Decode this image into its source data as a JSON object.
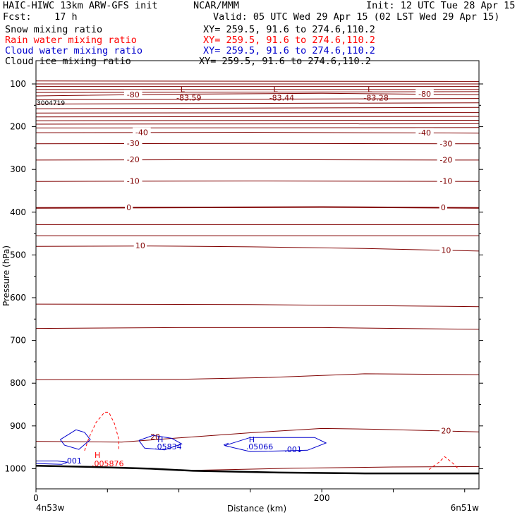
{
  "header": {
    "model": "HAIC-HIWC 13km ARW-GFS init",
    "agency": "NCAR/MMM",
    "init": "Init: 12 UTC Tue 28 Apr 15",
    "fcst": "Fcst:    17 h",
    "valid": "Valid: 05 UTC Wed 29 Apr 15 (02 LST Wed 29 Apr 15)"
  },
  "fields": [
    {
      "name": "Snow mixing ratio",
      "xy": "XY= 259.5, 91.6 to 274.6,110.2",
      "color": "#000000"
    },
    {
      "name": "Rain water mixing ratio",
      "xy": "XY= 259.5, 91.6 to 274.6,110.2",
      "color": "#ff0000"
    },
    {
      "name": "Cloud water mixing ratio",
      "xy": "XY= 259.5, 91.6 to 274.6,110.2",
      "color": "#0000cc"
    },
    {
      "name": "Cloud ice mixing ratio",
      "xy": "XY= 259.5, 91.6 to 274.6,110.2",
      "color": "#000000"
    }
  ],
  "colors": {
    "temperature": "#800000",
    "rain": "#ff0000",
    "cloud_water": "#0000cc",
    "terrain": "#000000"
  },
  "chart_data": {
    "type": "line",
    "ylabel": "Pressure (hPa)",
    "xlabel": "Distance (km)",
    "x_range": [
      0,
      310
    ],
    "y_range": [
      50,
      1050
    ],
    "y_ticks": [
      100,
      200,
      300,
      400,
      500,
      600,
      700,
      800,
      900,
      1000
    ],
    "x_ticks": [
      0,
      200
    ],
    "left_endpoint": "4n53w",
    "right_endpoint": "6n51w",
    "stamp": "3004719",
    "temperature_isotherms": [
      {
        "label": "-80",
        "labels_at": [
          68,
          272
        ],
        "points": [
          [
            0,
            128
          ],
          [
            100,
            124
          ],
          [
            200,
            122
          ],
          [
            310,
            125
          ]
        ]
      },
      {
        "label": "-40",
        "labels_at": [
          74,
          272
        ],
        "points": [
          [
            0,
            214
          ],
          [
            150,
            213
          ],
          [
            310,
            215
          ]
        ]
      },
      {
        "label": "-30",
        "labels_at": [
          68,
          287
        ],
        "points": [
          [
            0,
            240
          ],
          [
            150,
            239
          ],
          [
            310,
            240
          ]
        ]
      },
      {
        "label": "-20",
        "labels_at": [
          68,
          287
        ],
        "points": [
          [
            0,
            278
          ],
          [
            150,
            277
          ],
          [
            310,
            278
          ]
        ]
      },
      {
        "label": "-10",
        "labels_at": [
          68,
          287
        ],
        "points": [
          [
            0,
            328
          ],
          [
            150,
            327
          ],
          [
            310,
            328
          ]
        ]
      },
      {
        "label": "0",
        "labels_at": [
          65,
          285
        ],
        "points": [
          [
            0,
            390
          ],
          [
            200,
            388
          ],
          [
            310,
            390
          ]
        ]
      },
      {
        "label": "10",
        "labels_at": [
          73,
          287
        ],
        "points": [
          [
            0,
            480
          ],
          [
            80,
            479
          ],
          [
            150,
            481
          ],
          [
            230,
            485
          ],
          [
            310,
            491
          ]
        ]
      },
      {
        "label": "20",
        "labels_at": [
          287
        ],
        "points": [
          [
            0,
            936
          ],
          [
            60,
            938
          ],
          [
            100,
            928
          ],
          [
            150,
            916
          ],
          [
            200,
            906
          ],
          [
            240,
            908
          ],
          [
            310,
            914
          ]
        ]
      }
    ],
    "unlabeled_isotherms": [
      [
        [
          0,
          93
        ],
        [
          310,
          94
        ]
      ],
      [
        [
          0,
          100
        ],
        [
          310,
          100
        ]
      ],
      [
        [
          0,
          106
        ],
        [
          310,
          106
        ]
      ],
      [
        [
          0,
          113
        ],
        [
          310,
          113
        ]
      ],
      [
        [
          0,
          120
        ],
        [
          310,
          118
        ]
      ],
      [
        [
          0,
          137
        ],
        [
          310,
          134
        ]
      ],
      [
        [
          0,
          147
        ],
        [
          310,
          144
        ]
      ],
      [
        [
          0,
          158
        ],
        [
          310,
          155
        ]
      ],
      [
        [
          0,
          168
        ],
        [
          310,
          167
        ]
      ],
      [
        [
          0,
          177
        ],
        [
          310,
          176
        ]
      ],
      [
        [
          0,
          186
        ],
        [
          310,
          185
        ]
      ],
      [
        [
          0,
          194
        ],
        [
          310,
          193
        ]
      ],
      [
        [
          0,
          203
        ],
        [
          310,
          202
        ]
      ],
      [
        [
          0,
          429
        ],
        [
          310,
          429
        ]
      ],
      [
        [
          0,
          455
        ],
        [
          310,
          455
        ]
      ],
      [
        [
          0,
          615
        ],
        [
          150,
          616
        ],
        [
          310,
          621
        ]
      ],
      [
        [
          0,
          672
        ],
        [
          100,
          670
        ],
        [
          200,
          670
        ],
        [
          310,
          674
        ]
      ],
      [
        [
          0,
          792
        ],
        [
          100,
          791
        ],
        [
          160,
          787
        ],
        [
          230,
          778
        ],
        [
          310,
          780
        ]
      ],
      [
        [
          110,
          1004
        ],
        [
          180,
          999
        ],
        [
          250,
          996
        ],
        [
          310,
          995
        ]
      ]
    ],
    "temperature_minima": [
      {
        "label": "L",
        "value": "-83.59",
        "x": 107
      },
      {
        "label": "L",
        "value": "-83.44",
        "x": 172
      },
      {
        "label": "L",
        "value": "-83.28",
        "x": 238
      }
    ],
    "rain_contours": [
      [
        [
          34,
          958
        ],
        [
          37,
          928
        ],
        [
          42,
          892
        ],
        [
          48,
          868
        ],
        [
          51,
          868
        ],
        [
          55,
          895
        ],
        [
          58,
          932
        ],
        [
          58,
          958
        ]
      ],
      [
        [
          275,
          1002
        ],
        [
          282,
          985
        ],
        [
          286,
          972
        ],
        [
          292,
          988
        ],
        [
          296,
          1002
        ]
      ]
    ],
    "rain_max": {
      "label": "H",
      "value": ".005876",
      "x": 41
    },
    "cloud_water_contours": [
      [
        [
          17,
          932
        ],
        [
          28,
          909
        ],
        [
          34,
          915
        ],
        [
          38,
          932
        ],
        [
          30,
          955
        ],
        [
          20,
          945
        ],
        [
          17,
          932
        ]
      ],
      [
        [
          72,
          934
        ],
        [
          82,
          922
        ],
        [
          95,
          929
        ],
        [
          102,
          942
        ],
        [
          90,
          956
        ],
        [
          76,
          952
        ],
        [
          72,
          934
        ]
      ],
      [
        [
          132,
          946
        ],
        [
          150,
          927
        ],
        [
          195,
          927
        ],
        [
          203,
          940
        ],
        [
          190,
          957
        ],
        [
          150,
          960
        ],
        [
          132,
          946
        ]
      ]
    ],
    "cloud_water_labels": [
      {
        "label": ".001",
        "x": 26
      },
      {
        "label": ".001",
        "x": 180
      },
      {
        "label": "<",
        "x": 133
      }
    ],
    "cloud_water_maxima": [
      {
        "label": "H",
        "value": ".05834",
        "x": 83
      },
      {
        "label": "H",
        "value": ".05066",
        "x": 147
      }
    ],
    "terrain": [
      [
        0,
        993
      ],
      [
        40,
        996
      ],
      [
        80,
        1000
      ],
      [
        110,
        1005
      ],
      [
        170,
        1009
      ],
      [
        230,
        1011
      ],
      [
        310,
        1011
      ]
    ],
    "cloud_water_edge": [
      [
        0,
        982
      ],
      [
        15,
        982
      ],
      [
        22,
        985
      ],
      [
        18,
        990
      ],
      [
        0,
        988
      ]
    ]
  }
}
